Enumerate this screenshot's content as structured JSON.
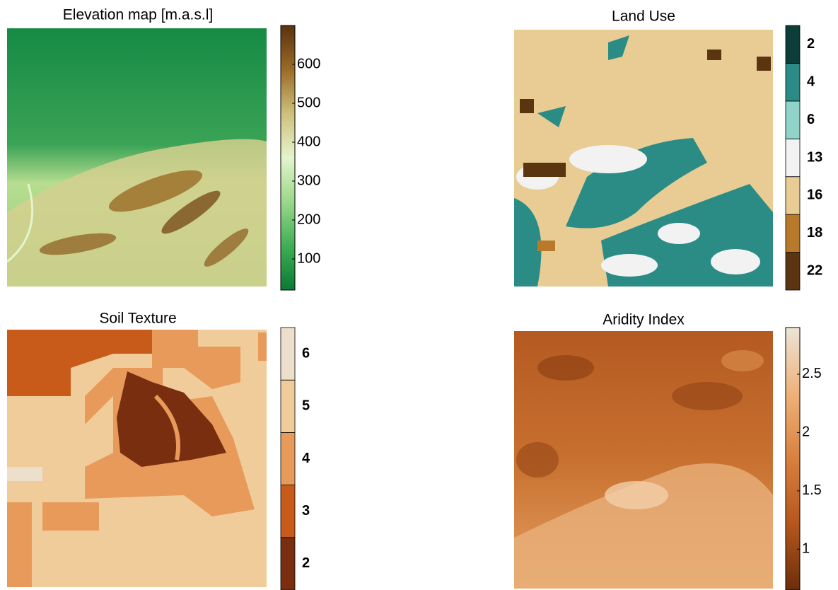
{
  "panels": [
    {
      "title": "Elevation map [m.a.s.l]",
      "type": "continuous",
      "lim": [
        20,
        700
      ],
      "ticks": [
        100,
        200,
        300,
        400,
        500,
        600
      ],
      "colors": [
        "#0a7a35",
        "#3fae55",
        "#9ad88a",
        "#e4f4cc",
        "#cfc07c",
        "#9a6b26",
        "#5a3210"
      ]
    },
    {
      "title": "Land Use",
      "type": "categorical",
      "classes": [
        22,
        18,
        16,
        13,
        6,
        4,
        2
      ],
      "colors": [
        "#5a3510",
        "#b87a2a",
        "#e8cc94",
        "#f2f2f2",
        "#8fd3c9",
        "#2a8c85",
        "#0d3d38"
      ]
    },
    {
      "title": "Soil Texture",
      "type": "categorical",
      "classes": [
        2,
        3,
        4,
        5,
        6
      ],
      "colors": [
        "#7a2e10",
        "#c85a1a",
        "#e89a5a",
        "#f0cc9a",
        "#ece0cc"
      ]
    },
    {
      "title": "Aridity Index",
      "type": "continuous",
      "lim": [
        0.65,
        2.9
      ],
      "ticks": [
        1,
        1.5,
        2,
        2.5
      ],
      "colors": [
        "#6b2e0a",
        "#b5561c",
        "#d9803e",
        "#eeb27a",
        "#ece4d6"
      ]
    }
  ]
}
